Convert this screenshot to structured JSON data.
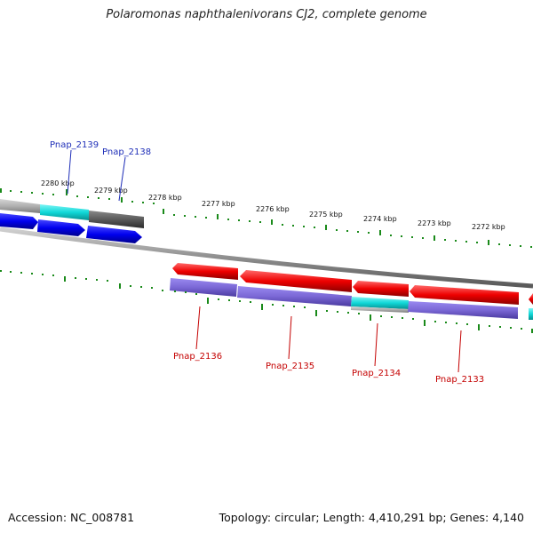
{
  "title": "Polaromonas naphthalenivorans CJ2, complete genome",
  "footer": {
    "accession": "Accession: NC_008781",
    "summary": "Topology: circular; Length: 4,410,291 bp; Genes: 4,140"
  },
  "scale_labels": [
    "2280 kbp",
    "2279 kbp",
    "2278 kbp",
    "2277 kbp",
    "2276 kbp",
    "2275 kbp",
    "2274 kbp",
    "2273 kbp",
    "2272 kbp"
  ],
  "gene_labels_forward": [
    "Pnap_2139",
    "Pnap_2138"
  ],
  "gene_labels_reverse": [
    "Pnap_2136",
    "Pnap_2135",
    "Pnap_2134",
    "Pnap_2133"
  ],
  "colors": {
    "forward_cds": "#0000ff",
    "reverse_cds": "#ff0000",
    "gc_skew_low": "#7b68d6",
    "gc_skew_high": "#00d6d6",
    "gc_gray": "#b0b0b0",
    "tick": "#1a8a1a",
    "backbone": "#888888"
  }
}
